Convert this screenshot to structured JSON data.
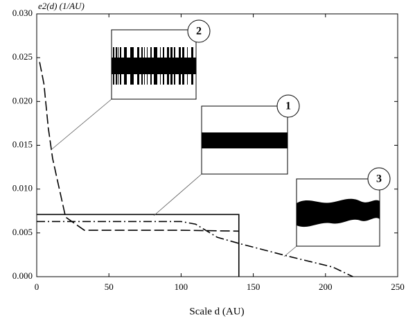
{
  "chart_data": {
    "type": "line",
    "y_label": "e2(d) (1/AU)",
    "x_label": "Scale d (AU)",
    "xlim": [
      0,
      250
    ],
    "xticks": [
      0,
      50,
      100,
      150,
      200,
      250
    ],
    "ylim": [
      0,
      0.03
    ],
    "yticks": [
      {
        "value": 0,
        "label": "0.000"
      },
      {
        "value": 0.005,
        "label": "0.005"
      },
      {
        "value": 0.01,
        "label": "0.010"
      },
      {
        "value": 0.015,
        "label": "0.015"
      },
      {
        "value": 0.02,
        "label": "0.020"
      },
      {
        "value": 0.025,
        "label": "0.025"
      },
      {
        "value": 0.03,
        "label": "0.030"
      }
    ],
    "series": [
      {
        "color": "#000000",
        "dash": "solid",
        "x": [
          0,
          140,
          140
        ],
        "values": [
          0.0071,
          0.0071,
          0
        ]
      },
      {
        "color": "#000000",
        "dash": "dashed",
        "x": [
          2,
          5,
          8,
          11,
          15,
          20,
          33,
          50,
          100,
          140
        ],
        "values": [
          0.0245,
          0.022,
          0.017,
          0.0135,
          0.0105,
          0.0068,
          0.0053,
          0.0053,
          0.0053,
          0.0052
        ]
      },
      {
        "color": "#000000",
        "dash": "dashdot",
        "x": [
          0,
          50,
          100,
          110,
          125,
          140,
          175,
          205,
          219
        ],
        "values": [
          0.0063,
          0.0063,
          0.0063,
          0.006,
          0.0045,
          0.0038,
          0.0023,
          0.0011,
          0
        ]
      }
    ],
    "annotations": [
      "2",
      "1",
      "3"
    ]
  }
}
